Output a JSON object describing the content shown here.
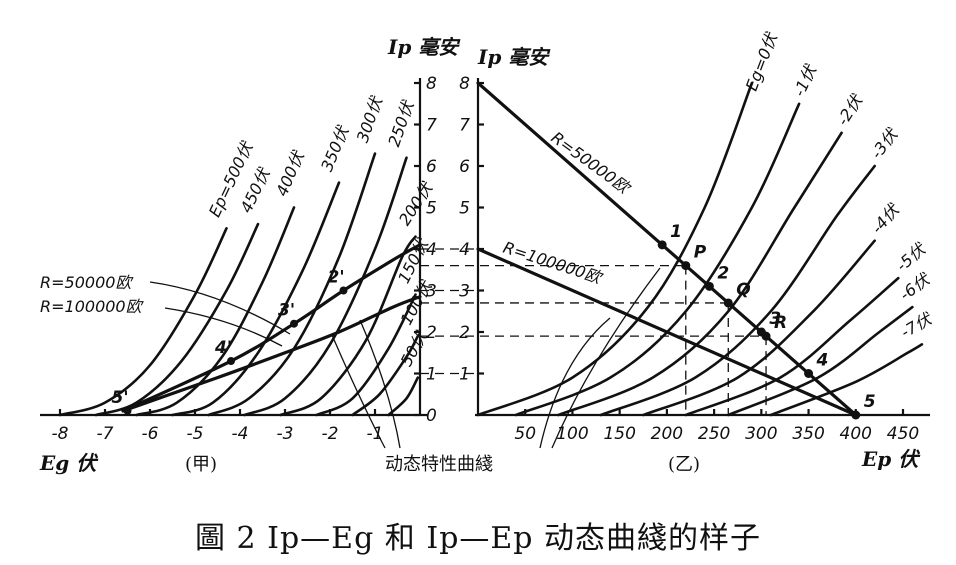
{
  "caption": "圖 2   Ip—Eg 和 Ip—Ep 动态曲綫的样子",
  "dynamic_label": "动态特性曲綫",
  "chart_data": [
    {
      "type": "line",
      "panel_label": "(甲)",
      "xlabel": "Eg 伏",
      "ylabel": "Ip 毫安",
      "xlim": [
        -8,
        0
      ],
      "ylim": [
        0,
        8
      ],
      "x_ticks": [
        "-8",
        "-7",
        "-6",
        "-5",
        "-4",
        "-3",
        "-2",
        "-1"
      ],
      "y_ticks": [
        "0",
        "1",
        "2",
        "3",
        "4",
        "5",
        "6",
        "7",
        "8"
      ],
      "series": [
        {
          "name": "Ep=500伏",
          "points": [
            [
              -8.0,
              0
            ],
            [
              -7.0,
              0.3
            ],
            [
              -6.0,
              1.2
            ],
            [
              -5.0,
              2.9
            ],
            [
              -4.3,
              4.5
            ]
          ]
        },
        {
          "name": "450伏",
          "points": [
            [
              -7.2,
              0
            ],
            [
              -6.3,
              0.3
            ],
            [
              -5.3,
              1.3
            ],
            [
              -4.3,
              3.0
            ],
            [
              -3.6,
              4.6
            ]
          ]
        },
        {
          "name": "400伏",
          "points": [
            [
              -6.3,
              0
            ],
            [
              -5.4,
              0.3
            ],
            [
              -4.4,
              1.4
            ],
            [
              -3.5,
              3.2
            ],
            [
              -2.8,
              5.0
            ]
          ]
        },
        {
          "name": "350伏",
          "points": [
            [
              -5.5,
              0
            ],
            [
              -4.6,
              0.3
            ],
            [
              -3.6,
              1.5
            ],
            [
              -2.6,
              3.5
            ],
            [
              -1.8,
              5.6
            ]
          ]
        },
        {
          "name": "300伏",
          "points": [
            [
              -4.7,
              0
            ],
            [
              -3.8,
              0.4
            ],
            [
              -2.8,
              1.6
            ],
            [
              -1.8,
              3.8
            ],
            [
              -1.0,
              6.3
            ]
          ]
        },
        {
          "name": "250伏",
          "points": [
            [
              -3.9,
              0
            ],
            [
              -3.0,
              0.4
            ],
            [
              -2.0,
              1.7
            ],
            [
              -1.0,
              4.0
            ],
            [
              -0.3,
              6.2
            ]
          ]
        },
        {
          "name": "200伏",
          "points": [
            [
              -3.1,
              0
            ],
            [
              -2.2,
              0.4
            ],
            [
              -1.2,
              1.8
            ],
            [
              -0.4,
              3.8
            ],
            [
              -0.1,
              4.3
            ]
          ]
        },
        {
          "name": "150伏",
          "points": [
            [
              -2.3,
              0
            ],
            [
              -1.5,
              0.4
            ],
            [
              -0.7,
              1.6
            ],
            [
              -0.1,
              2.9
            ]
          ]
        },
        {
          "name": "100伏",
          "points": [
            [
              -1.5,
              0
            ],
            [
              -0.9,
              0.5
            ],
            [
              -0.3,
              1.4
            ],
            [
              -0.05,
              1.9
            ]
          ]
        },
        {
          "name": "50伏",
          "points": [
            [
              -0.7,
              0
            ],
            [
              -0.3,
              0.4
            ],
            [
              -0.05,
              0.9
            ]
          ]
        }
      ],
      "dynamic_curves": [
        {
          "name": "R=50000欧",
          "points": [
            [
              -6.6,
              0.1
            ],
            [
              -4.2,
              1.3
            ],
            [
              -2.8,
              2.2
            ],
            [
              -1.7,
              3.0
            ],
            [
              -0.5,
              3.8
            ],
            [
              0.0,
              4.1
            ]
          ]
        },
        {
          "name": "R=100000欧",
          "points": [
            [
              -6.6,
              0.1
            ],
            [
              -4.5,
              0.9
            ],
            [
              -3.0,
              1.5
            ],
            [
              -1.8,
              2.0
            ],
            [
              -0.6,
              2.6
            ],
            [
              0.0,
              2.85
            ]
          ]
        }
      ],
      "points": [
        {
          "label": "2'",
          "x": -1.7,
          "y": 3.0
        },
        {
          "label": "3'",
          "x": -2.8,
          "y": 2.2
        },
        {
          "label": "4'",
          "x": -4.2,
          "y": 1.3
        },
        {
          "label": "5'",
          "x": -6.5,
          "y": 0.1
        }
      ]
    },
    {
      "type": "line",
      "panel_label": "(乙)",
      "xlabel": "Ep 伏",
      "ylabel": "Ip 毫安",
      "xlim": [
        0,
        450
      ],
      "ylim": [
        0,
        8
      ],
      "x_ticks": [
        "50",
        "100",
        "150",
        "200",
        "250",
        "300",
        "350",
        "400",
        "450"
      ],
      "y_ticks": [
        "1",
        "2",
        "3",
        "4",
        "5",
        "6",
        "7",
        "8"
      ],
      "series": [
        {
          "name": "Eg=0伏",
          "points": [
            [
              0,
              0
            ],
            [
              100,
              0.9
            ],
            [
              180,
              2.6
            ],
            [
              240,
              5.0
            ],
            [
              290,
              8.0
            ]
          ]
        },
        {
          "name": "-1伏",
          "points": [
            [
              40,
              0
            ],
            [
              140,
              0.9
            ],
            [
              220,
              2.5
            ],
            [
              290,
              5.0
            ],
            [
              340,
              7.5
            ]
          ]
        },
        {
          "name": "-2伏",
          "points": [
            [
              85,
              0
            ],
            [
              185,
              0.9
            ],
            [
              265,
              2.5
            ],
            [
              335,
              5.0
            ],
            [
              385,
              6.8
            ]
          ]
        },
        {
          "name": "-3伏",
          "points": [
            [
              130,
              0
            ],
            [
              230,
              0.9
            ],
            [
              310,
              2.5
            ],
            [
              380,
              4.8
            ],
            [
              420,
              6.0
            ]
          ]
        },
        {
          "name": "-4伏",
          "points": [
            [
              175,
              0
            ],
            [
              275,
              0.9
            ],
            [
              355,
              2.5
            ],
            [
              420,
              4.2
            ]
          ]
        },
        {
          "name": "-5伏",
          "points": [
            [
              220,
              0
            ],
            [
              320,
              0.9
            ],
            [
              395,
              2.3
            ],
            [
              445,
              3.3
            ]
          ]
        },
        {
          "name": "-6伏",
          "points": [
            [
              265,
              0
            ],
            [
              360,
              0.9
            ],
            [
              425,
              2.0
            ],
            [
              460,
              2.6
            ]
          ]
        },
        {
          "name": "-7伏",
          "points": [
            [
              310,
              0
            ],
            [
              400,
              0.8
            ],
            [
              455,
              1.5
            ],
            [
              470,
              1.7
            ]
          ]
        }
      ],
      "load_lines": [
        {
          "name": "R=50000欧",
          "points": [
            [
              0,
              8
            ],
            [
              400,
              0
            ]
          ]
        },
        {
          "name": "R=100000欧",
          "points": [
            [
              0,
              4
            ],
            [
              400,
              0
            ]
          ]
        }
      ],
      "points": [
        {
          "label": "P",
          "x": 220,
          "y": 3.6
        },
        {
          "label": "Q",
          "x": 265,
          "y": 2.7
        },
        {
          "label": "R",
          "x": 305,
          "y": 1.9
        },
        {
          "label": "1",
          "x": 195,
          "y": 4.1
        },
        {
          "label": "2",
          "x": 245,
          "y": 3.1
        },
        {
          "label": "3",
          "x": 300,
          "y": 2.0
        },
        {
          "label": "4",
          "x": 350,
          "y": 1.0
        },
        {
          "label": "5",
          "x": 400,
          "y": 0.0
        }
      ]
    }
  ]
}
